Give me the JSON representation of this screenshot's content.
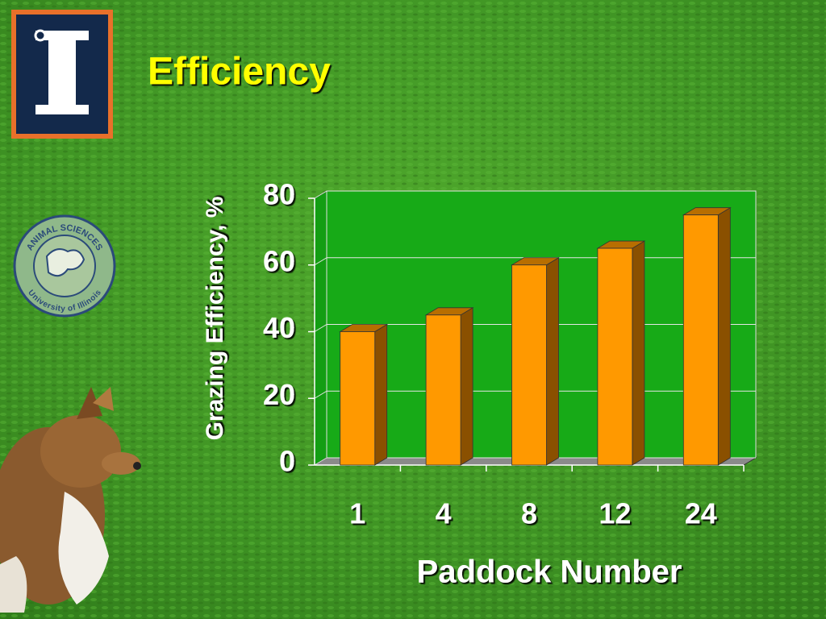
{
  "chart_data": {
    "type": "bar",
    "title": "Efficiency",
    "y_label": "Grazing Efficiency, %",
    "x_label": "Paddock Number",
    "categories": [
      "1",
      "4",
      "8",
      "12",
      "24"
    ],
    "values": [
      40,
      45,
      60,
      65,
      75
    ],
    "color": "#ff9900",
    "ylim": [
      0,
      80
    ],
    "yticks": [
      0,
      20,
      40,
      60,
      80
    ],
    "grid": true
  },
  "badge": {
    "top": "ANIMAL SCIENCES",
    "bottom": "University of Illinois"
  }
}
